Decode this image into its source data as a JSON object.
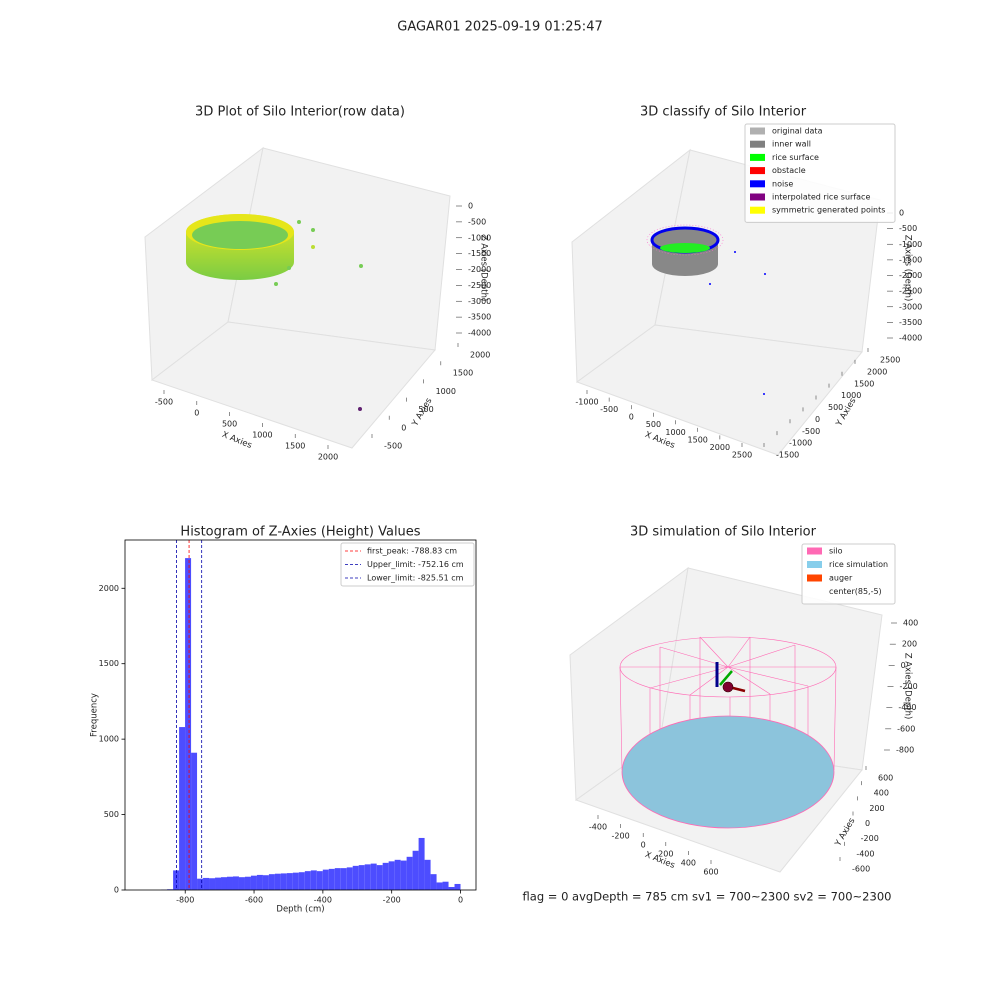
{
  "title": "GAGAR01 2025-09-19 01:25:47",
  "footer": "flag = 0     avgDepth = 785 cm  sv1 = 700~2300  sv2 = 700~2300",
  "chart_data": [
    {
      "type": "scatter3d",
      "title": "3D Plot of Silo Interior(row data)",
      "xlabel": "X Axies",
      "ylabel": "Y Axies",
      "zlabel": "Z Axies (Depth)",
      "xticks": [
        -500,
        0,
        500,
        1000,
        1500,
        2000
      ],
      "yticks": [
        -500,
        0,
        500,
        1000,
        1500,
        2000
      ],
      "zticks": [
        0,
        -500,
        -1000,
        -1500,
        -2000,
        -2500,
        -3000,
        -3500,
        -4000
      ]
    },
    {
      "type": "scatter3d",
      "title": "3D classify of Silo Interior",
      "xlabel": "X Axies",
      "ylabel": "Y Axies",
      "zlabel": "Z Axies (Depth)",
      "xticks": [
        -1000,
        -500,
        0,
        500,
        1000,
        1500,
        2000,
        2500
      ],
      "yticks": [
        -1500,
        -1000,
        -500,
        0,
        500,
        1000,
        1500,
        2000,
        2500
      ],
      "zticks": [
        0,
        -500,
        -1000,
        -1500,
        -2000,
        -2500,
        -3000,
        -3500,
        -4000
      ],
      "series": [
        {
          "name": "original data",
          "color": "#b0b0b0"
        },
        {
          "name": "inner wall",
          "color": "#808080"
        },
        {
          "name": "rice surface",
          "color": "#00ff00"
        },
        {
          "name": "obstacle",
          "color": "#ff0000"
        },
        {
          "name": "noise",
          "color": "#0000ff"
        },
        {
          "name": "interpolated rice surface",
          "color": "#800080"
        },
        {
          "name": "symmetric generated points",
          "color": "#ffff00"
        }
      ]
    },
    {
      "type": "histogram",
      "title": "Histogram of Z-Axies (Height) Values",
      "xlabel": "Depth (cm)",
      "ylabel": "Frequency",
      "color": "#4d4dff",
      "bins": [
        -870,
        -852.6,
        -835.2,
        -817.8,
        -800.4,
        -783,
        -765.6,
        -748.2,
        -730.8,
        -713.4,
        -696,
        -678.6,
        -661.2,
        -643.8,
        -626.4,
        -609,
        -591.6,
        -574.2,
        -556.8,
        -539.4,
        -522,
        -504.6,
        -487.2,
        -469.8,
        -452.4,
        -435,
        -417.6,
        -400.2,
        -382.8,
        -365.4,
        -348,
        -330.6,
        -313.2,
        -295.8,
        -278.4,
        -261,
        -243.6,
        -226.2,
        -208.8,
        -191.4,
        -174,
        -156.6,
        -139.2,
        -121.8,
        -104.4,
        -87,
        -69.6,
        -52.2,
        -34.8,
        -17.4,
        0
      ],
      "values": [
        2,
        5,
        130,
        1080,
        2200,
        910,
        75,
        80,
        78,
        82,
        85,
        88,
        90,
        85,
        88,
        95,
        100,
        98,
        105,
        108,
        110,
        112,
        115,
        118,
        125,
        130,
        125,
        135,
        140,
        145,
        145,
        150,
        160,
        165,
        170,
        175,
        165,
        180,
        190,
        200,
        195,
        220,
        260,
        345,
        200,
        105,
        50,
        55,
        20,
        40
      ],
      "xlim": [
        -975,
        45
      ],
      "ylim": [
        0,
        2320
      ],
      "xticks": [
        -800,
        -600,
        -400,
        -200,
        0
      ],
      "yticks": [
        0,
        500,
        1000,
        1500,
        2000
      ],
      "lines": [
        {
          "name": "first_peak: -788.83 cm",
          "value": -788.83,
          "color": "#ff0000"
        },
        {
          "name": "Upper_limit: -752.16 cm",
          "value": -752.16,
          "color": "#0000aa"
        },
        {
          "name": "Lower_limit: -825.51 cm",
          "value": -825.51,
          "color": "#0000aa"
        }
      ]
    },
    {
      "type": "scatter3d",
      "title": "3D simulation of Silo Interior",
      "xlabel": "X Axies",
      "ylabel": "Y Axies",
      "zlabel": "Z Axies (Depth)",
      "xticks": [
        -400,
        -200,
        0,
        200,
        400,
        600
      ],
      "yticks": [
        -600,
        -400,
        -200,
        0,
        200,
        400,
        600
      ],
      "zticks": [
        400,
        200,
        0,
        -200,
        -400,
        -600,
        -800
      ],
      "series": [
        {
          "name": "silo",
          "color": "#ff69b4"
        },
        {
          "name": "rice simulation",
          "color": "#87ceeb"
        },
        {
          "name": "auger",
          "color": "#ff4500"
        },
        {
          "name": "center(85,-5)",
          "color": "#ffffff"
        }
      ]
    }
  ]
}
